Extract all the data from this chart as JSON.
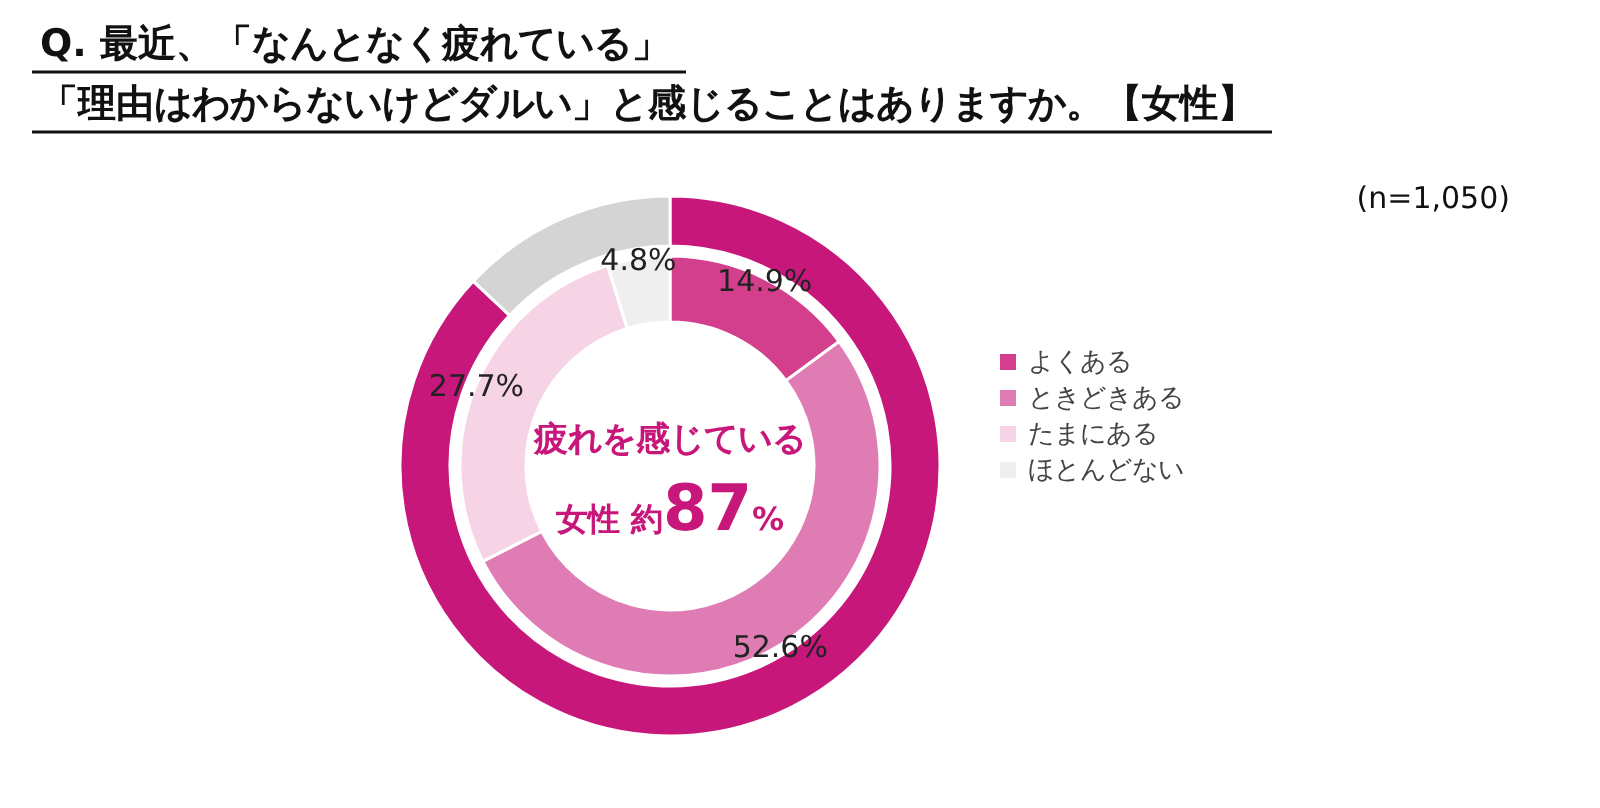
{
  "chart_data": [
    {
      "type": "donut",
      "title": "Q. 最近、「なんとなく疲れている」",
      "subtitle": "「理由はわからないけどダルい」と感じることはありますか。【女性】",
      "categories": [
        "よくある",
        "ときどきある",
        "たまにある",
        "ほとんどない"
      ],
      "values": [
        14.9,
        52.6,
        27.7,
        4.8
      ],
      "colors": [
        "#d43f8d",
        "#e07cb4",
        "#f6d3e5",
        "#efefef"
      ],
      "value_labels": [
        "14.9%",
        "52.6%",
        "27.7%",
        "4.8%"
      ],
      "legend": "right",
      "annotations": [
        "(n=1,050)"
      ]
    },
    {
      "type": "donut",
      "categories": [
        null,
        null
      ],
      "values": [
        87,
        13
      ],
      "colors": [
        "#c8177a",
        "#d4d4d4"
      ],
      "annotations": [
        "疲れを感じている",
        "女性 約87%"
      ]
    }
  ]
}
